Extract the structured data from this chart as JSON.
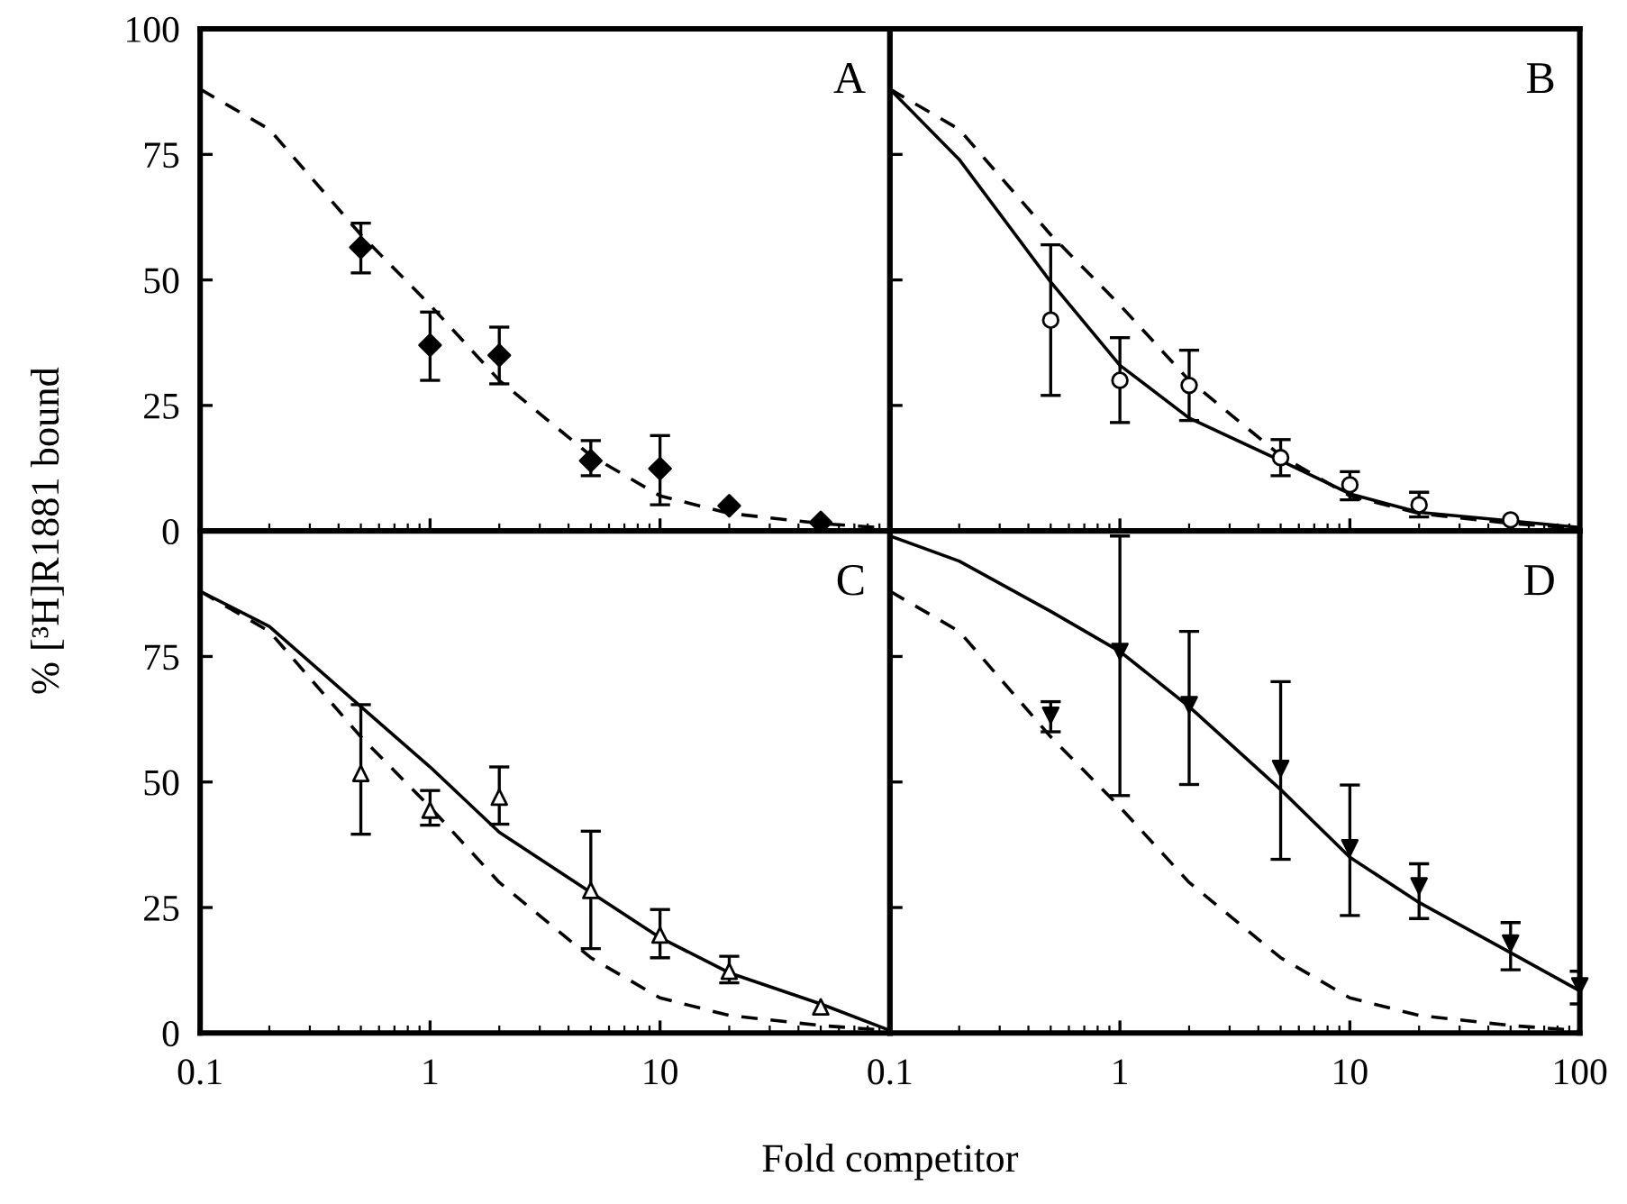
{
  "chart_data": [
    {
      "type": "line",
      "ylabel": "% [³H]R1881 bound",
      "annotations": [
        "A"
      ],
      "log": "x",
      "xlim": [
        0.1,
        100
      ],
      "xticks": [
        0.1,
        1,
        10,
        100
      ],
      "ylim": [
        0,
        100
      ],
      "yticks": [
        0,
        25,
        50,
        75,
        100
      ],
      "tick_labels": "y",
      "grid": false,
      "legend": false,
      "series": [
        {
          "type": "line",
          "line_style": "dashed",
          "marker": "none",
          "color": "#000000",
          "x": [
            0.1,
            0.2,
            0.5,
            1,
            2,
            5,
            10,
            20,
            50,
            100
          ],
          "values": [
            88,
            80,
            59,
            45,
            30,
            15,
            7,
            3.5,
            1.5,
            0.5
          ]
        },
        {
          "type": "scatter",
          "marker": "diamond",
          "color": "#000000",
          "x": [
            0.5,
            1,
            2,
            5,
            10,
            20,
            50
          ],
          "values": [
            56.5,
            37,
            35,
            14,
            12.4,
            5,
            1.7
          ],
          "errors": [
            [
              51.4,
              61.3
            ],
            [
              30,
              43.6
            ],
            [
              29.3,
              40.6
            ],
            [
              11,
              18
            ],
            [
              5.2,
              19
            ],
            null,
            null
          ]
        }
      ]
    },
    {
      "type": "line",
      "annotations": [
        "B"
      ],
      "log": "x",
      "xlim": [
        0.1,
        100
      ],
      "xticks": [
        0.1,
        1,
        10,
        100
      ],
      "ylim": [
        0,
        100
      ],
      "yticks": [
        0,
        25,
        50,
        75,
        100
      ],
      "tick_labels": false,
      "grid": false,
      "legend": false,
      "series": [
        {
          "type": "line",
          "line_style": "dashed",
          "marker": "none",
          "color": "#000000",
          "x": [
            0.1,
            0.2,
            0.5,
            1,
            2,
            5,
            10,
            20,
            50,
            100
          ],
          "values": [
            88,
            80,
            59,
            45,
            30,
            15,
            7,
            3.5,
            1.5,
            0.5
          ]
        },
        {
          "type": "line",
          "line_style": "solid",
          "marker": "none",
          "color": "#000000",
          "x": [
            0.1,
            0.2,
            0.5,
            1,
            2,
            5,
            10,
            20,
            50,
            100
          ],
          "values": [
            88,
            74,
            49.6,
            33,
            22.5,
            14,
            7.4,
            3.7,
            2,
            0.7
          ]
        },
        {
          "type": "scatter",
          "marker": "circle",
          "color": "#000000",
          "x": [
            0.5,
            1,
            2,
            5,
            10,
            20,
            50
          ],
          "values": [
            42,
            30,
            29,
            14.6,
            9.2,
            5.2,
            2.2
          ],
          "errors": [
            [
              27,
              57
            ],
            [
              21.6,
              38.5
            ],
            [
              22,
              36
            ],
            [
              11,
              18.2
            ],
            [
              6.2,
              11.8
            ],
            [
              2.8,
              7.7
            ],
            null
          ]
        }
      ]
    },
    {
      "type": "line",
      "xlabel": "Fold competitor",
      "annotations": [
        "C"
      ],
      "log": "x",
      "xlim": [
        0.1,
        100
      ],
      "xticks": [
        0.1,
        1,
        10,
        {
          "value": 100,
          "label": null
        }
      ],
      "ylim": [
        0,
        100
      ],
      "yticks": [
        0,
        25,
        50,
        75,
        {
          "value": 100,
          "label": null
        }
      ],
      "grid": false,
      "legend": false,
      "series": [
        {
          "type": "line",
          "line_style": "dashed",
          "marker": "none",
          "color": "#000000",
          "x": [
            0.1,
            0.2,
            0.5,
            1,
            2,
            5,
            10,
            20,
            50,
            100
          ],
          "values": [
            88,
            80,
            59,
            45,
            30,
            15,
            7,
            3.5,
            1.5,
            0.5
          ]
        },
        {
          "type": "line",
          "line_style": "solid",
          "marker": "none",
          "color": "#000000",
          "x": [
            0.1,
            0.2,
            0.5,
            1,
            2,
            5,
            10,
            20,
            50,
            100
          ],
          "values": [
            88,
            81,
            65,
            53,
            40,
            28,
            19,
            12,
            5.8,
            0.5
          ]
        },
        {
          "type": "scatter",
          "marker": "triangle",
          "color": "#000000",
          "x": [
            0.5,
            1,
            2,
            5,
            10,
            20,
            50
          ],
          "values": [
            51.7,
            44.4,
            47,
            28.4,
            19.5,
            12.3,
            5.2
          ],
          "errors": [
            [
              39.6,
              65.4
            ],
            [
              41.4,
              48.3
            ],
            [
              41.6,
              53
            ],
            [
              16.8,
              40.2
            ],
            [
              15,
              24.6
            ],
            [
              10,
              15.3
            ],
            null
          ]
        }
      ]
    },
    {
      "type": "line",
      "annotations": [
        "D"
      ],
      "log": "x",
      "xlim": [
        0.1,
        100
      ],
      "xticks": [
        0.1,
        1,
        10,
        100
      ],
      "ylim": [
        0,
        100
      ],
      "yticks": [
        0,
        25,
        50,
        75,
        100
      ],
      "tick_labels": "x",
      "grid": false,
      "legend": false,
      "series": [
        {
          "type": "line",
          "line_style": "dashed",
          "marker": "none",
          "color": "#000000",
          "x": [
            0.1,
            0.2,
            0.5,
            1,
            2,
            5,
            10,
            20,
            50,
            100
          ],
          "values": [
            88,
            80,
            59,
            45,
            30,
            15,
            7,
            3.5,
            1.5,
            0.5
          ]
        },
        {
          "type": "line",
          "line_style": "solid",
          "marker": "none",
          "color": "#000000",
          "x": [
            0.1,
            0.2,
            0.5,
            1,
            2,
            5,
            10,
            20,
            50,
            100
          ],
          "values": [
            99,
            94,
            84,
            76,
            65,
            48.5,
            35,
            26,
            16,
            8.4
          ]
        },
        {
          "type": "scatter",
          "marker": "triangle_down",
          "color": "#000000",
          "x": [
            0.5,
            1,
            2,
            5,
            10,
            20,
            50,
            100
          ],
          "values": [
            63.3,
            76,
            65.4,
            52.7,
            36.9,
            29.3,
            17.9,
            9.4
          ],
          "errors": [
            [
              60,
              66
            ],
            [
              47.3,
              99
            ],
            [
              49.5,
              80
            ],
            [
              34.6,
              70
            ],
            [
              23.4,
              49.4
            ],
            [
              22.8,
              33.7
            ],
            [
              12.6,
              22
            ],
            [
              5.8,
              12.3
            ]
          ]
        }
      ]
    }
  ]
}
